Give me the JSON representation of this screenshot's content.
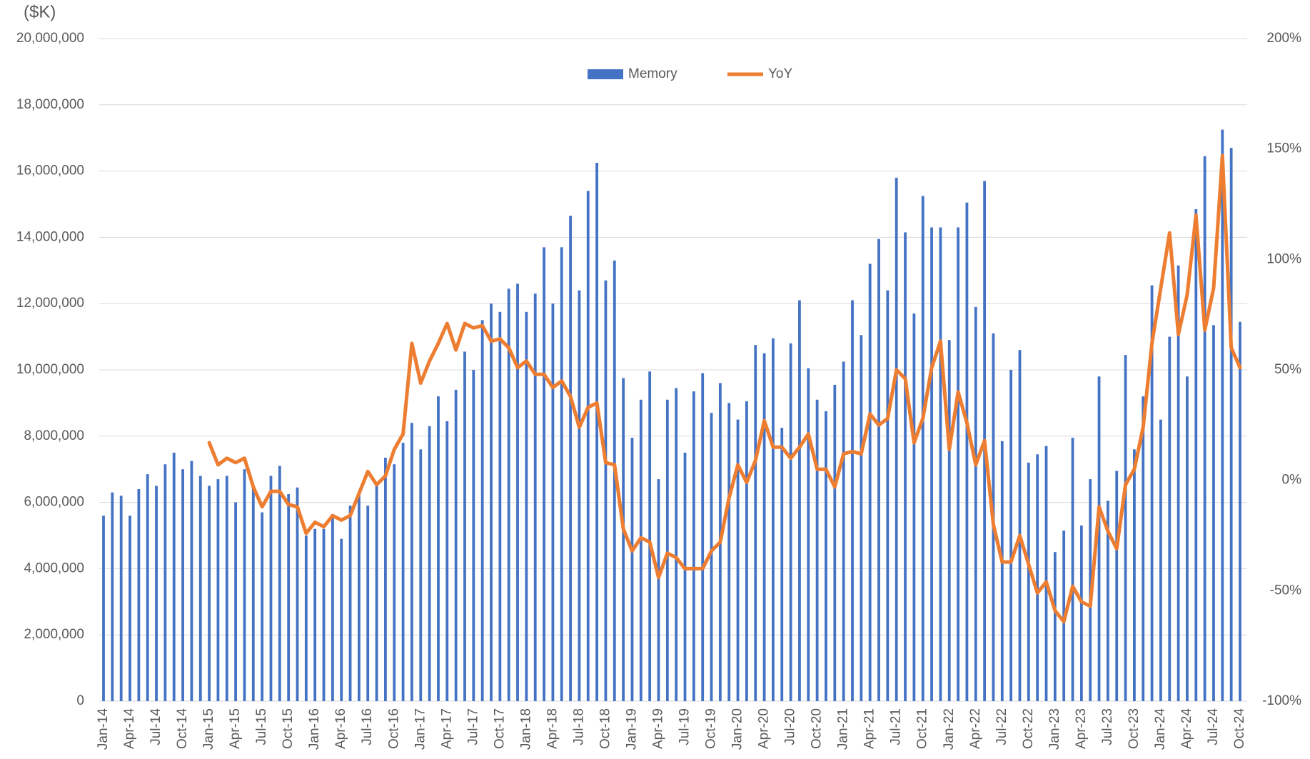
{
  "chart_data": {
    "type": "bar",
    "y_label": "($K)",
    "categories": [
      "Jan-14",
      null,
      null,
      "Apr-14",
      null,
      null,
      "Jul-14",
      null,
      null,
      "Oct-14",
      null,
      null,
      "Jan-15",
      null,
      null,
      "Apr-15",
      null,
      null,
      "Jul-15",
      null,
      null,
      "Oct-15",
      null,
      null,
      "Jan-16",
      null,
      null,
      "Apr-16",
      null,
      null,
      "Jul-16",
      null,
      null,
      "Oct-16",
      null,
      null,
      "Jan-17",
      null,
      null,
      "Apr-17",
      null,
      null,
      "Jul-17",
      null,
      null,
      "Oct-17",
      null,
      null,
      "Jan-18",
      null,
      null,
      "Apr-18",
      null,
      null,
      "Jul-18",
      null,
      null,
      "Oct-18",
      null,
      null,
      "Jan-19",
      null,
      null,
      "Apr-19",
      null,
      null,
      "Jul-19",
      null,
      null,
      "Oct-19",
      null,
      null,
      "Jan-20",
      null,
      null,
      "Apr-20",
      null,
      null,
      "Jul-20",
      null,
      null,
      "Oct-20",
      null,
      null,
      "Jan-21",
      null,
      null,
      "Apr-21",
      null,
      null,
      "Jul-21",
      null,
      null,
      "Oct-21",
      null,
      null,
      "Jan-22",
      null,
      null,
      "Apr-22",
      null,
      null,
      "Jul-22",
      null,
      null,
      "Oct-22",
      null,
      null,
      "Jan-23",
      null,
      null,
      "Apr-23",
      null,
      null,
      "Jul-23",
      null,
      null,
      "Oct-23",
      null,
      null,
      "Jan-24",
      null,
      null,
      "Apr-24",
      null,
      null,
      "Jul-24",
      null,
      null,
      "Oct-24"
    ],
    "series": [
      {
        "name": "Memory",
        "type": "bar",
        "color": "#4472c4",
        "values": [
          5600000,
          6300000,
          6200000,
          5600000,
          6400000,
          6850000,
          6500000,
          7150000,
          7500000,
          7000000,
          7250000,
          6800000,
          6500000,
          6700000,
          6800000,
          6000000,
          7000000,
          6500000,
          5700000,
          6800000,
          7100000,
          6250000,
          6450000,
          5000000,
          5200000,
          5200000,
          5650000,
          4900000,
          5900000,
          6200000,
          5900000,
          6600000,
          7350000,
          7150000,
          7800000,
          8400000,
          7600000,
          8300000,
          9200000,
          8450000,
          9400000,
          10550000,
          10000000,
          11500000,
          12000000,
          11750000,
          12450000,
          12600000,
          11750000,
          12300000,
          13700000,
          12000000,
          13700000,
          14650000,
          12400000,
          15400000,
          16250000,
          12700000,
          13300000,
          9750000,
          7950000,
          9100000,
          9950000,
          6700000,
          9100000,
          9450000,
          7500000,
          9350000,
          9900000,
          8700000,
          9600000,
          9000000,
          8500000,
          9050000,
          10750000,
          10500000,
          10950000,
          8250000,
          10800000,
          12100000,
          10050000,
          9100000,
          8750000,
          9550000,
          10250000,
          12100000,
          11050000,
          13200000,
          13950000,
          12400000,
          15800000,
          14150000,
          11700000,
          15250000,
          14300000,
          14300000,
          10900000,
          14300000,
          15050000,
          11900000,
          15700000,
          11100000,
          7850000,
          10000000,
          10600000,
          7200000,
          7450000,
          7700000,
          4500000,
          5150000,
          7950000,
          5300000,
          6700000,
          9800000,
          6050000,
          6950000,
          10450000,
          7600000,
          9200000,
          12550000,
          8500000,
          11000000,
          13150000,
          9800000,
          14850000,
          16450000,
          11350000,
          17250000,
          16700000,
          11450000
        ]
      },
      {
        "name": "YoY",
        "type": "line",
        "axis": "y2",
        "color": "#ed7d31",
        "values": [
          null,
          null,
          null,
          null,
          null,
          null,
          null,
          null,
          null,
          null,
          null,
          null,
          17,
          7,
          10,
          8,
          10,
          -3,
          -12,
          -5,
          -5,
          -11,
          -12,
          -24,
          -19,
          -21,
          -16,
          -18,
          -16,
          -6,
          4,
          -2,
          2,
          14,
          21,
          62,
          44,
          54,
          62,
          71,
          59,
          71,
          69,
          70,
          63,
          64,
          60,
          51,
          54,
          48,
          48,
          42,
          45,
          38,
          24,
          33,
          35,
          8,
          7,
          -22,
          -32,
          -26,
          -28,
          -44,
          -33,
          -35,
          -40,
          -40,
          -40,
          -32,
          -28,
          -8,
          7,
          -1,
          9,
          27,
          15,
          15,
          10,
          15,
          21,
          5,
          5,
          -3,
          12,
          13,
          12,
          30,
          25,
          28,
          50,
          46,
          17,
          28,
          51,
          63,
          14,
          40,
          26,
          7,
          18,
          -20,
          -37,
          -37,
          -25,
          -38,
          -51,
          -46,
          -59,
          -64,
          -48,
          -55,
          -57,
          -12,
          -23,
          -31,
          -2,
          5,
          24,
          62,
          87,
          112,
          66,
          84,
          120,
          68,
          87,
          147,
          60,
          51
        ]
      }
    ],
    "ylim": [
      0,
      20000000
    ],
    "yticks": [
      0,
      {
        "value": 2000000,
        "label": "2,000,000"
      },
      {
        "value": 4000000,
        "label": "4,000,000"
      },
      {
        "value": 6000000,
        "label": "6,000,000"
      },
      {
        "value": 8000000,
        "label": "8,000,000"
      },
      {
        "value": 10000000,
        "label": "10,000,000"
      },
      {
        "value": 12000000,
        "label": "12,000,000"
      },
      {
        "value": 14000000,
        "label": "14,000,000"
      },
      {
        "value": 16000000,
        "label": "16,000,000"
      },
      {
        "value": 18000000,
        "label": "18,000,000"
      },
      {
        "value": 20000000,
        "label": "20,000,000"
      }
    ],
    "y2lim": [
      -100,
      200
    ],
    "y2ticks": [
      {
        "value": -100,
        "label": "-100%"
      },
      {
        "value": -50,
        "label": "-50%"
      },
      {
        "value": 0,
        "label": "0%"
      },
      {
        "value": 50,
        "label": "50%"
      },
      {
        "value": 100,
        "label": "100%"
      },
      {
        "value": 150,
        "label": "150%"
      },
      {
        "value": 200,
        "label": "200%"
      }
    ],
    "grid": true,
    "legend": "top"
  }
}
